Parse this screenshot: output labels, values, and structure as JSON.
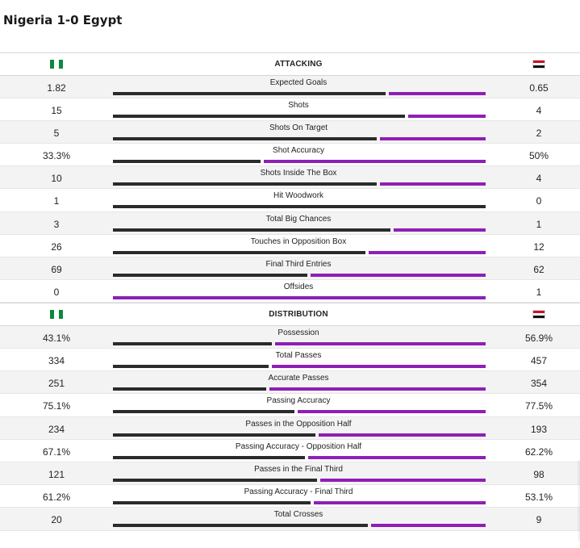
{
  "match": {
    "title": "Nigeria 1-0 Egypt"
  },
  "colors": {
    "home_bar": "#2b2b2b",
    "away_bar": "#8e1fb5",
    "nigeria_flag": [
      "#0a8a3c",
      "#ffffff",
      "#0a8a3c"
    ],
    "egypt_flag": [
      "#ce1126",
      "#ffffff",
      "#111111"
    ]
  },
  "icons": {
    "home": "nigeria-flag-icon",
    "away": "egypt-flag-icon"
  },
  "sections": [
    {
      "title": "ATTACKING",
      "stats": [
        {
          "label": "Expected Goals",
          "home": "1.82",
          "away": "0.65",
          "home_share": 0.737
        },
        {
          "label": "Shots",
          "home": "15",
          "away": "4",
          "home_share": 0.79
        },
        {
          "label": "Shots On Target",
          "home": "5",
          "away": "2",
          "home_share": 0.714
        },
        {
          "label": "Shot Accuracy",
          "home": "33.3%",
          "away": "50%",
          "home_share": 0.4
        },
        {
          "label": "Shots Inside The Box",
          "home": "10",
          "away": "4",
          "home_share": 0.714
        },
        {
          "label": "Hit Woodwork",
          "home": "1",
          "away": "0",
          "home_share": 1.0
        },
        {
          "label": "Total Big Chances",
          "home": "3",
          "away": "1",
          "home_share": 0.75
        },
        {
          "label": "Touches in Opposition Box",
          "home": "26",
          "away": "12",
          "home_share": 0.684
        },
        {
          "label": "Final Third Entries",
          "home": "69",
          "away": "62",
          "home_share": 0.527
        },
        {
          "label": "Offsides",
          "home": "0",
          "away": "1",
          "home_share": 0.0
        }
      ]
    },
    {
      "title": "DISTRIBUTION",
      "stats": [
        {
          "label": "Possession",
          "home": "43.1%",
          "away": "56.9%",
          "home_share": 0.431
        },
        {
          "label": "Total Passes",
          "home": "334",
          "away": "457",
          "home_share": 0.422
        },
        {
          "label": "Accurate Passes",
          "home": "251",
          "away": "354",
          "home_share": 0.415
        },
        {
          "label": "Passing Accuracy",
          "home": "75.1%",
          "away": "77.5%",
          "home_share": 0.492
        },
        {
          "label": "Passes in the Opposition Half",
          "home": "234",
          "away": "193",
          "home_share": 0.548
        },
        {
          "label": "Passing Accuracy - Opposition Half",
          "home": "67.1%",
          "away": "62.2%",
          "home_share": 0.519
        },
        {
          "label": "Passes in the Final Third",
          "home": "121",
          "away": "98",
          "home_share": 0.553
        },
        {
          "label": "Passing Accuracy - Final Third",
          "home": "61.2%",
          "away": "53.1%",
          "home_share": 0.535
        },
        {
          "label": "Total Crosses",
          "home": "20",
          "away": "9",
          "home_share": 0.69
        }
      ]
    }
  ]
}
